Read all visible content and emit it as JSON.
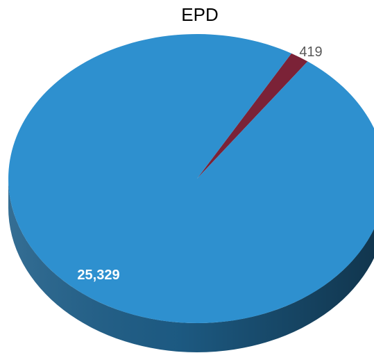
{
  "chart_data": {
    "type": "pie",
    "title": "EPD",
    "categories": [
      "",
      ""
    ],
    "values": [
      419,
      25329
    ],
    "labels": [
      "419",
      "25,329"
    ],
    "colors": [
      "#7b2237",
      "#2e90cf"
    ],
    "side_colors": [
      "#4a1422",
      "#1e5e88"
    ],
    "label_colors": [
      "#595959",
      "#ffffff"
    ],
    "start_angle_deg": 30,
    "style": "3d"
  }
}
